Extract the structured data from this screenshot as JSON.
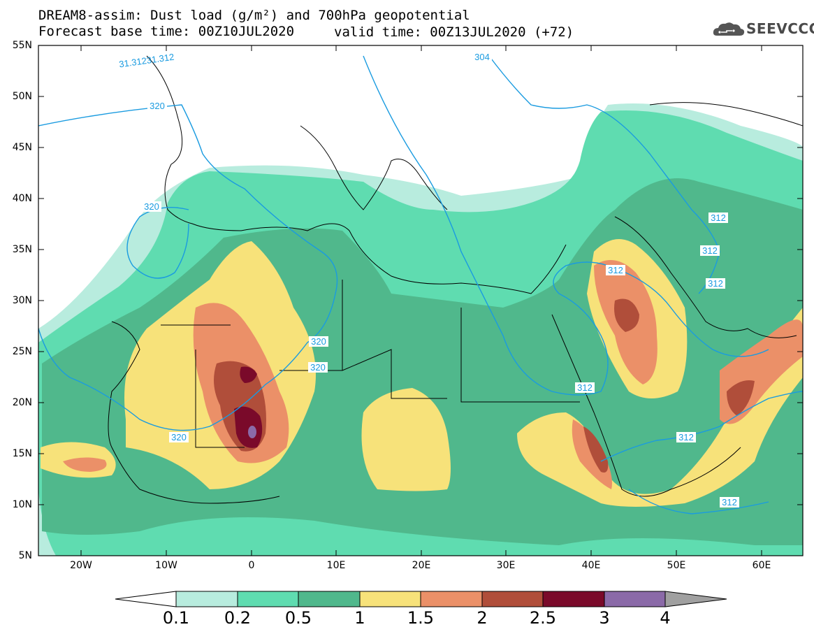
{
  "header": {
    "title_line1": "DREAM8-assim: Dust load (g/m²) and 700hPa geopotential",
    "title_line2": "Forecast base time: 00Z10JUL2020",
    "valid_time": "valid time: 00Z13JUL2020 (+72)",
    "logo_text": "SEEVCCC",
    "logo_icon": "cloud-logo-icon"
  },
  "axes": {
    "lat_labels": [
      "55N",
      "50N",
      "45N",
      "40N",
      "35N",
      "30N",
      "25N",
      "20N",
      "15N",
      "10N",
      "5N"
    ],
    "lon_labels": [
      "20W",
      "10W",
      "0",
      "10E",
      "20E",
      "30E",
      "40E",
      "50E",
      "60E"
    ]
  },
  "contours": {
    "labels": [
      "320",
      "320",
      "320",
      "320",
      "320",
      "312",
      "312",
      "312",
      "312",
      "312",
      "312",
      "312",
      "304",
      "31.31231.312"
    ],
    "color": "#1a9be0"
  },
  "legend": {
    "ticks": [
      "0.1",
      "0.2",
      "0.5",
      "1",
      "1.5",
      "2",
      "2.5",
      "3",
      "4"
    ],
    "colors": [
      "#b8ecde",
      "#5fdcb0",
      "#50b88c",
      "#f7e27a",
      "#eb9068",
      "#b04e3a",
      "#7a0a2a",
      "#8b6aa8"
    ],
    "under_color": "#ffffff",
    "over_color": "#a0a0a0"
  },
  "colors": {
    "c01": "#b8ecde",
    "c02": "#5fdcb0",
    "c05": "#50b88c",
    "c1": "#f7e27a",
    "c15": "#eb9068",
    "c2": "#b04e3a",
    "c25": "#7a0a2a",
    "c3": "#8b6aa8"
  }
}
